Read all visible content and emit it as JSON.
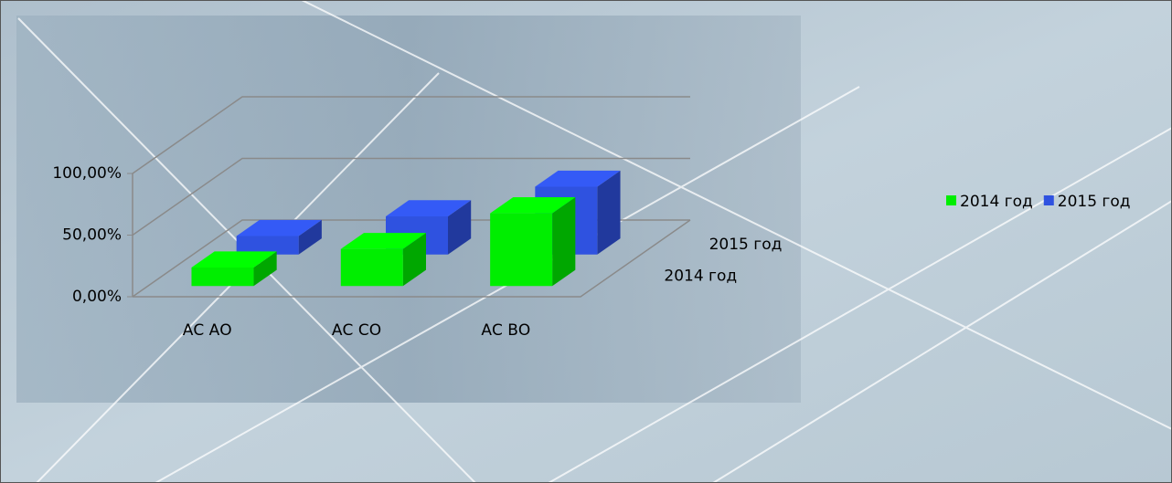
{
  "chart_data": {
    "type": "bar3d",
    "categories": [
      "АС АО",
      "АС СО",
      "АС ВО"
    ],
    "series": [
      {
        "name": "2014 год",
        "color": "#00ee00",
        "values": [
          15,
          30,
          59
        ]
      },
      {
        "name": "2015 год",
        "color": "#2f52e0",
        "values": [
          15,
          31,
          55
        ]
      }
    ],
    "ylim": [
      0,
      100
    ],
    "yticks": [
      {
        "value": 0,
        "label": "0,00%"
      },
      {
        "value": 50,
        "label": "50,00%"
      },
      {
        "value": 100,
        "label": "100,00%"
      }
    ],
    "grid": true,
    "legend": "right"
  }
}
